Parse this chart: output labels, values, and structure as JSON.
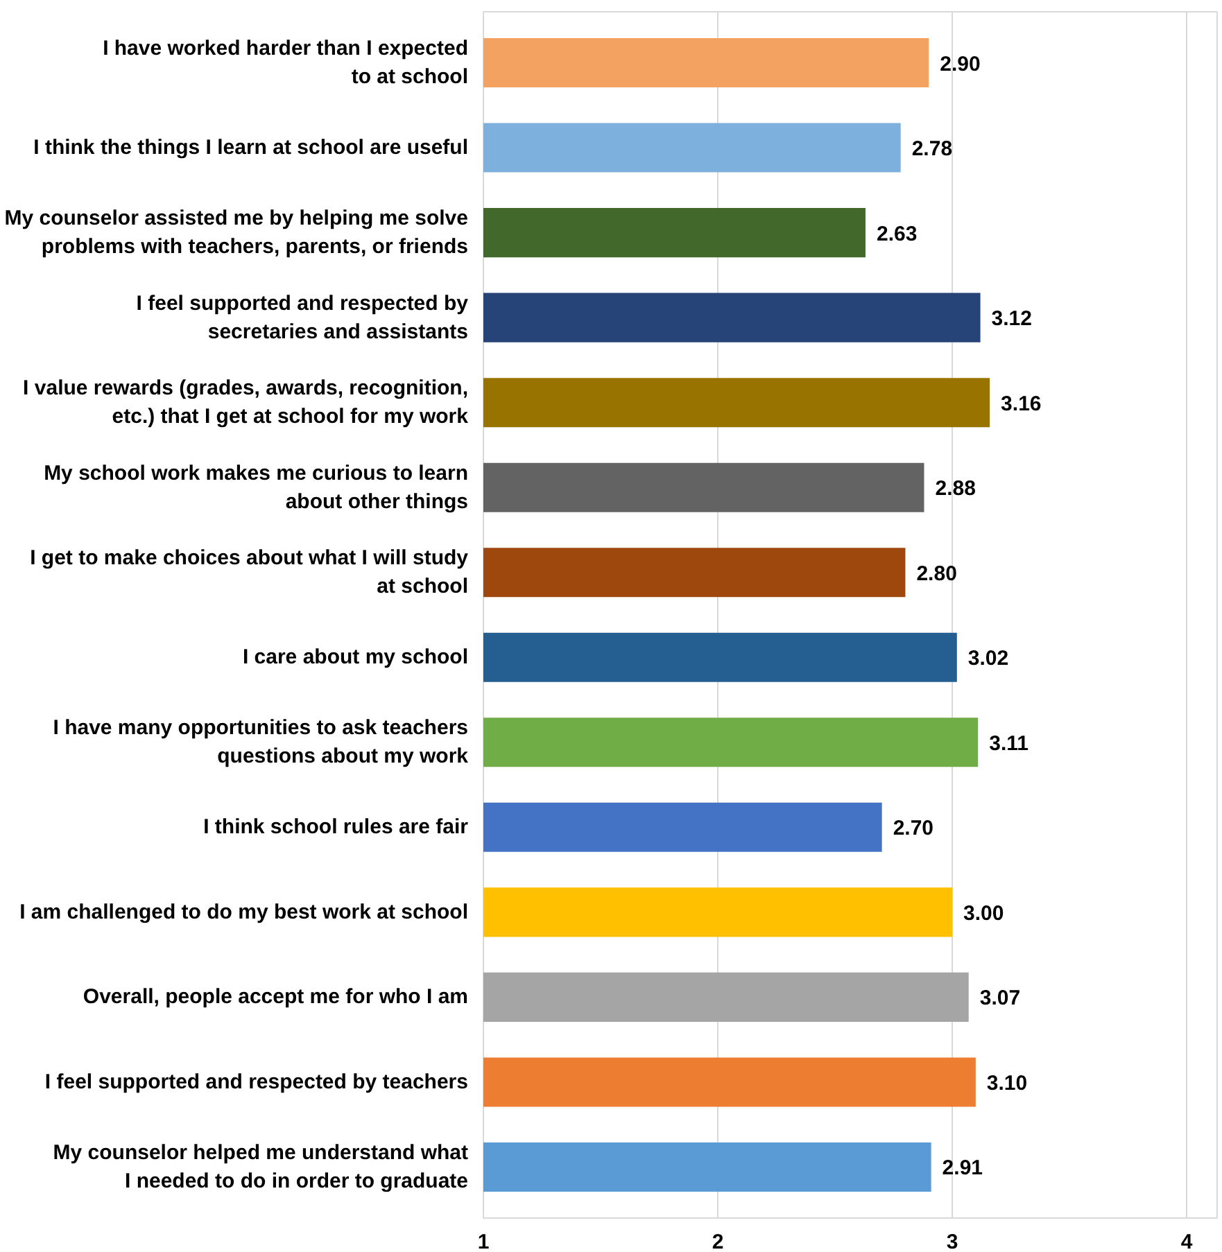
{
  "chart_data": {
    "type": "bar",
    "orientation": "horizontal",
    "categories": [
      "I have worked harder than I expected\nto at school",
      "I think the things I learn at school are useful",
      "My counselor assisted me by helping me solve\nproblems with teachers, parents, or friends",
      "I feel supported and respected by\nsecretaries and assistants",
      "I value rewards (grades, awards, recognition,\netc.) that I get at school for my work",
      "My school work makes me curious to learn\nabout other things",
      "I get to make choices about what I will study\nat school",
      "I care about my school",
      "I have many opportunities to ask teachers\nquestions about my work",
      "I think school rules are fair",
      "I am challenged to do my best work at school",
      "Overall, people accept me for who I am",
      "I feel supported and respected by teachers",
      "My counselor helped me understand what\nI needed to do in order to graduate"
    ],
    "values": [
      2.9,
      2.78,
      2.63,
      3.12,
      3.16,
      2.88,
      2.8,
      3.02,
      3.11,
      2.7,
      3.0,
      3.07,
      3.1,
      2.91
    ],
    "colors": [
      "#f4a261",
      "#7eb0de",
      "#43682b",
      "#264478",
      "#997300",
      "#636363",
      "#9e480e",
      "#255e91",
      "#70ad47",
      "#4472c4",
      "#ffc000",
      "#a5a5a5",
      "#ed7d31",
      "#5b9bd5"
    ],
    "value_labels": [
      "2.90",
      "2.78",
      "2.63",
      "3.12",
      "3.16",
      "2.88",
      "2.80",
      "3.02",
      "3.11",
      "2.70",
      "3.00",
      "3.07",
      "3.10",
      "2.91"
    ],
    "xlim": [
      1,
      4.13
    ],
    "xticks": [
      1,
      2,
      3,
      4
    ],
    "grid": "x"
  }
}
